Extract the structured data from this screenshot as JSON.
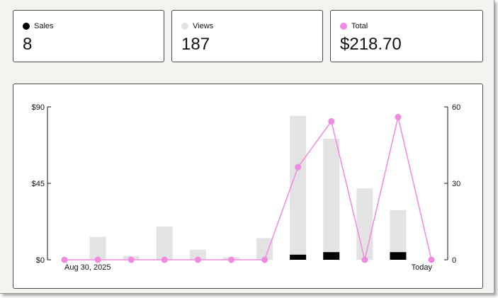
{
  "stats": [
    {
      "label": "Sales",
      "value": "8",
      "color": "#000000"
    },
    {
      "label": "Views",
      "value": "187",
      "color": "#e3e3e3"
    },
    {
      "label": "Total",
      "value": "$218.70",
      "color": "#f08ae0"
    }
  ],
  "colors": {
    "views_bar": "#e3e3e3",
    "sales_bar": "#000000",
    "total_line": "#f08ae0"
  },
  "chart_data": {
    "type": "bar",
    "x_labels": [
      "Aug 30, 2025",
      "Today"
    ],
    "left_axis": {
      "ticks": [
        "$0",
        "$45",
        "$90"
      ],
      "range": [
        0,
        90
      ]
    },
    "right_axis": {
      "ticks": [
        "0",
        "30",
        "60"
      ],
      "range": [
        0,
        60
      ]
    },
    "grid": false,
    "series": [
      {
        "name": "Views",
        "axis": "right",
        "kind": "bar",
        "values": [
          0,
          9,
          1.5,
          13,
          4,
          1,
          8.5,
          56.5,
          47.5,
          28,
          19.5,
          0
        ]
      },
      {
        "name": "Sales",
        "axis": "right",
        "kind": "bar",
        "values": [
          0,
          0,
          0,
          0,
          0,
          0,
          0,
          2,
          3,
          0,
          3,
          0
        ]
      },
      {
        "name": "Total",
        "axis": "left",
        "kind": "line",
        "values": [
          0,
          0,
          0,
          0,
          0,
          0,
          0,
          54.5,
          81.5,
          0,
          84,
          0
        ]
      }
    ]
  }
}
